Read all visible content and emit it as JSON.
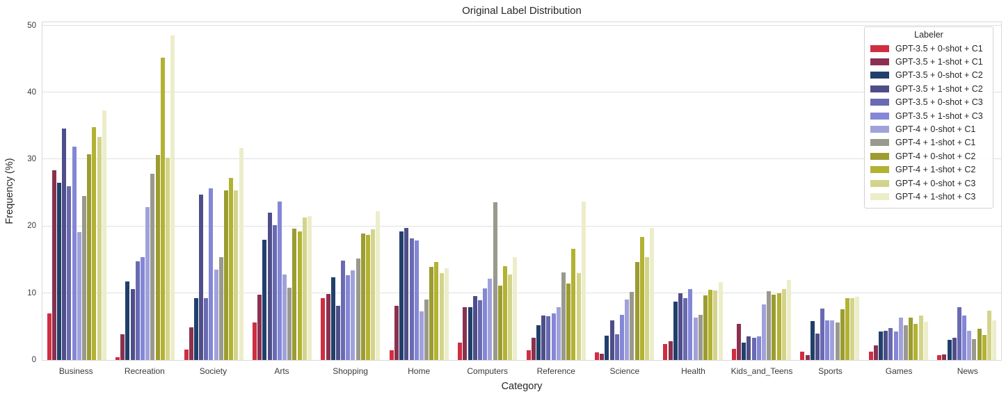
{
  "chart_data": {
    "type": "bar",
    "title": "Original Label Distribution",
    "xlabel": "Category",
    "ylabel": "Frequency (%)",
    "legend_title": "Labeler",
    "legend_position": "upper right",
    "grid": true,
    "ylim": [
      0,
      50.7
    ],
    "yticks": [
      0,
      10,
      20,
      30,
      40,
      50
    ],
    "categories": [
      "Business",
      "Recreation",
      "Society",
      "Arts",
      "Shopping",
      "Home",
      "Computers",
      "Reference",
      "Science",
      "Health",
      "Kids_and_Teens",
      "Sports",
      "Games",
      "News"
    ],
    "series": [
      {
        "name": "GPT-3.5 + 0-shot + C1",
        "color": "#cf2e41",
        "values": [
          7.0,
          0.4,
          1.6,
          5.6,
          9.2,
          1.5,
          2.6,
          1.5,
          1.1,
          2.4,
          1.7,
          1.3,
          1.2,
          0.7
        ]
      },
      {
        "name": "GPT-3.5 + 1-shot + C1",
        "color": "#8a3150",
        "values": [
          28.4,
          3.8,
          4.9,
          9.8,
          9.9,
          8.1,
          7.9,
          3.3,
          0.9,
          2.8,
          5.4,
          0.7,
          2.2,
          0.8
        ]
      },
      {
        "name": "GPT-3.5 + 0-shot + C2",
        "color": "#20406b",
        "values": [
          26.5,
          11.7,
          9.2,
          18.0,
          12.4,
          19.2,
          7.9,
          5.2,
          3.6,
          8.7,
          2.6,
          5.8,
          4.3,
          3.0
        ]
      },
      {
        "name": "GPT-3.5 + 1-shot + C2",
        "color": "#4f4e89",
        "values": [
          34.6,
          10.6,
          24.7,
          22.0,
          8.1,
          19.7,
          9.6,
          6.7,
          5.9,
          10.0,
          3.5,
          3.9,
          4.4,
          3.3
        ]
      },
      {
        "name": "GPT-3.5 + 0-shot + C3",
        "color": "#696ab1",
        "values": [
          26.0,
          14.8,
          9.3,
          20.2,
          14.9,
          18.2,
          8.9,
          6.5,
          3.8,
          9.3,
          3.3,
          7.7,
          4.8,
          7.9
        ]
      },
      {
        "name": "GPT-3.5 + 1-shot + C3",
        "color": "#8486d6",
        "values": [
          31.9,
          15.4,
          25.7,
          23.7,
          12.7,
          17.9,
          10.7,
          7.0,
          6.8,
          10.6,
          3.5,
          5.9,
          4.3,
          6.7
        ]
      },
      {
        "name": "GPT-4 + 0-shot + C1",
        "color": "#a0a1db",
        "values": [
          19.1,
          22.9,
          13.5,
          12.8,
          13.4,
          7.3,
          12.2,
          7.9,
          9.0,
          6.3,
          8.3,
          5.9,
          6.3,
          4.4
        ]
      },
      {
        "name": "GPT-4 + 1-shot + C1",
        "color": "#99998d",
        "values": [
          24.5,
          27.8,
          15.4,
          10.8,
          15.2,
          9.0,
          23.6,
          13.1,
          10.2,
          6.8,
          10.3,
          5.6,
          5.2,
          3.1
        ]
      },
      {
        "name": "GPT-4 + 0-shot + C2",
        "color": "#9c9c31",
        "values": [
          30.8,
          30.6,
          25.4,
          19.6,
          18.9,
          13.9,
          11.1,
          11.4,
          14.6,
          9.7,
          9.8,
          7.6,
          6.3,
          4.7
        ]
      },
      {
        "name": "GPT-4 + 1-shot + C2",
        "color": "#b2b233",
        "values": [
          34.8,
          45.2,
          27.2,
          19.2,
          18.7,
          14.6,
          14.0,
          16.6,
          18.4,
          10.5,
          10.0,
          9.2,
          5.4,
          3.7
        ]
      },
      {
        "name": "GPT-4 + 0-shot + C3",
        "color": "#d3d48b",
        "values": [
          33.3,
          30.2,
          25.3,
          21.3,
          19.5,
          13.0,
          12.8,
          13.0,
          15.4,
          10.4,
          10.6,
          9.3,
          6.7,
          7.4
        ]
      },
      {
        "name": "GPT-4 + 1-shot + C3",
        "color": "#ecedca",
        "values": [
          37.3,
          48.5,
          31.7,
          21.5,
          22.2,
          13.7,
          15.4,
          23.7,
          19.7,
          11.6,
          11.9,
          9.5,
          5.7,
          5.9
        ]
      }
    ]
  }
}
